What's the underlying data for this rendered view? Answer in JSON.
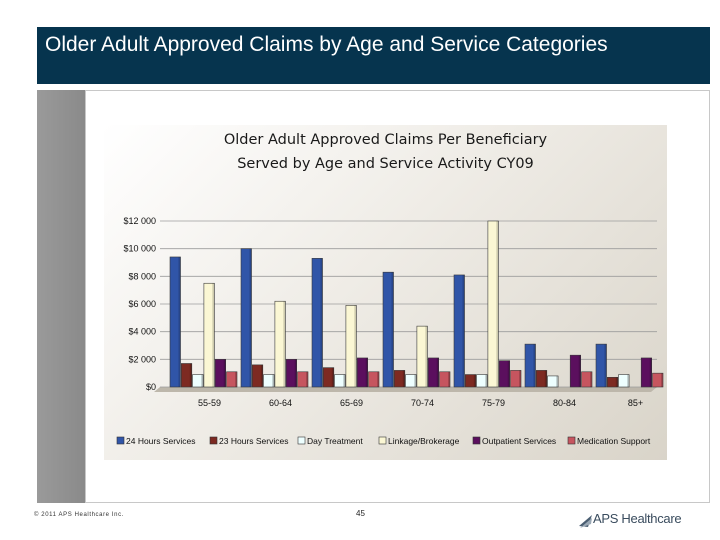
{
  "slide": {
    "title": "Older Adult Approved Claims by Age and Service Categories",
    "footer_copyright": "© 2011 APS Healthcare Inc.",
    "page_number": "45",
    "logo_text": "APS Healthcare"
  },
  "colors": {
    "title_bar": "#06344e",
    "series": [
      "#3055a8",
      "#7d2a22",
      "#eeffff",
      "#fbf7d4",
      "#5b0f5e",
      "#c6555f"
    ]
  },
  "chart_data": {
    "type": "bar",
    "title": "Older Adult Approved Claims Per Beneficiary Served by Age and Service Activity CY09",
    "title_lines": [
      "Older Adult Approved Claims Per Beneficiary",
      "Served by Age and Service Activity CY09"
    ],
    "categories": [
      "55-59",
      "60-64",
      "65-69",
      "70-74",
      "75-79",
      "80-84",
      "85+"
    ],
    "ylim": [
      0,
      12000
    ],
    "yticks": [
      0,
      2000,
      4000,
      6000,
      8000,
      10000,
      12000
    ],
    "ytick_labels": [
      "$0",
      "$2 000",
      "$4 000",
      "$6 000",
      "$8 000",
      "$10 000",
      "$12 000"
    ],
    "grid": true,
    "legend_position": "bottom",
    "series": [
      {
        "name": "24 Hours Services",
        "values": [
          9400,
          10000,
          9300,
          8300,
          8100,
          3100,
          3100
        ]
      },
      {
        "name": "23 Hours Services",
        "values": [
          1700,
          1600,
          1400,
          1200,
          900,
          1200,
          700
        ]
      },
      {
        "name": "Day Treatment",
        "values": [
          900,
          900,
          900,
          900,
          900,
          800,
          900
        ]
      },
      {
        "name": "Linkage/Brokerage",
        "values": [
          7500,
          6200,
          5900,
          4400,
          12000,
          0,
          0
        ]
      },
      {
        "name": "Outpatient Services",
        "values": [
          2000,
          2000,
          2100,
          2100,
          1900,
          2300,
          2100
        ]
      },
      {
        "name": "Medication Support",
        "values": [
          1100,
          1100,
          1100,
          1100,
          1200,
          1100,
          1000
        ]
      }
    ]
  }
}
